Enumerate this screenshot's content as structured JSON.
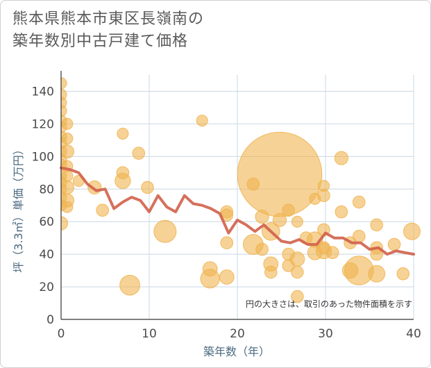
{
  "title_line1": "熊本県熊本市東区長嶺南の",
  "title_line2": "築年数別中古戸建て価格",
  "chart_data": {
    "type": "scatter",
    "title": "熊本県熊本市東区長嶺南の築年数別中古戸建て価格",
    "xlabel": "築年数（年）",
    "ylabel": "坪（3.3㎡）単価（万円）",
    "xlim": [
      0,
      40
    ],
    "ylim": [
      0,
      150
    ],
    "xticks": [
      0,
      10,
      20,
      30,
      40
    ],
    "yticks": [
      0,
      20,
      40,
      60,
      80,
      100,
      120,
      140
    ],
    "grid": true,
    "annotation": "円の大きさは、取引のあった物件面積を示す",
    "bubble_color": "#f0b450",
    "line_color": "#d0604a",
    "points": [
      {
        "x": 0,
        "y": 145,
        "s": 1
      },
      {
        "x": 0,
        "y": 138,
        "s": 1
      },
      {
        "x": 0,
        "y": 133,
        "s": 1
      },
      {
        "x": 0,
        "y": 128,
        "s": 1
      },
      {
        "x": 0,
        "y": 122,
        "s": 1
      },
      {
        "x": 0,
        "y": 118,
        "s": 1
      },
      {
        "x": 0,
        "y": 112,
        "s": 1
      },
      {
        "x": 0,
        "y": 108,
        "s": 1
      },
      {
        "x": 0,
        "y": 103,
        "s": 1
      },
      {
        "x": 0,
        "y": 98,
        "s": 1
      },
      {
        "x": 0,
        "y": 95,
        "s": 1
      },
      {
        "x": 0,
        "y": 88,
        "s": 1
      },
      {
        "x": 0,
        "y": 84,
        "s": 1
      },
      {
        "x": 0,
        "y": 80,
        "s": 1
      },
      {
        "x": 0,
        "y": 75,
        "s": 1
      },
      {
        "x": 0,
        "y": 70,
        "s": 1
      },
      {
        "x": 0,
        "y": 59,
        "s": 1.2
      },
      {
        "x": 0.7,
        "y": 120,
        "s": 1
      },
      {
        "x": 0.7,
        "y": 111,
        "s": 1
      },
      {
        "x": 0.7,
        "y": 103,
        "s": 1.2
      },
      {
        "x": 0.7,
        "y": 94,
        "s": 1
      },
      {
        "x": 0.7,
        "y": 88,
        "s": 1
      },
      {
        "x": 0.7,
        "y": 81,
        "s": 1.2
      },
      {
        "x": 0.7,
        "y": 73,
        "s": 1.2
      },
      {
        "x": 0.7,
        "y": 69,
        "s": 1
      },
      {
        "x": 2,
        "y": 85,
        "s": 1
      },
      {
        "x": 3.8,
        "y": 81,
        "s": 1.2
      },
      {
        "x": 4.7,
        "y": 67,
        "s": 1.1
      },
      {
        "x": 7,
        "y": 114,
        "s": 1
      },
      {
        "x": 7,
        "y": 90,
        "s": 1.1
      },
      {
        "x": 7,
        "y": 85,
        "s": 1.4
      },
      {
        "x": 7.8,
        "y": 21,
        "s": 1.8
      },
      {
        "x": 8.8,
        "y": 102,
        "s": 1.1
      },
      {
        "x": 9.8,
        "y": 81,
        "s": 1.1
      },
      {
        "x": 11.8,
        "y": 54,
        "s": 2
      },
      {
        "x": 16,
        "y": 122,
        "s": 1
      },
      {
        "x": 16.9,
        "y": 31,
        "s": 1.3
      },
      {
        "x": 16.9,
        "y": 25,
        "s": 1.7
      },
      {
        "x": 18.8,
        "y": 66,
        "s": 1.1
      },
      {
        "x": 18.8,
        "y": 64,
        "s": 1.1
      },
      {
        "x": 18.8,
        "y": 47,
        "s": 1.1
      },
      {
        "x": 18.8,
        "y": 26,
        "s": 1.3
      },
      {
        "x": 21.8,
        "y": 83,
        "s": 1.1
      },
      {
        "x": 21.8,
        "y": 46,
        "s": 1.8
      },
      {
        "x": 22.8,
        "y": 63,
        "s": 1.2
      },
      {
        "x": 22.8,
        "y": 43,
        "s": 1.1
      },
      {
        "x": 23.8,
        "y": 54,
        "s": 1.6
      },
      {
        "x": 23.8,
        "y": 34,
        "s": 1.3
      },
      {
        "x": 23.8,
        "y": 29,
        "s": 1.1
      },
      {
        "x": 24.8,
        "y": 89,
        "s": 7.6
      },
      {
        "x": 24.8,
        "y": 61,
        "s": 1.2
      },
      {
        "x": 25.8,
        "y": 67,
        "s": 1.1
      },
      {
        "x": 25.8,
        "y": 40,
        "s": 1.1
      },
      {
        "x": 25.8,
        "y": 33,
        "s": 1.1
      },
      {
        "x": 26.8,
        "y": 60,
        "s": 1
      },
      {
        "x": 26.8,
        "y": 37,
        "s": 1.3
      },
      {
        "x": 26.8,
        "y": 29,
        "s": 1.1
      },
      {
        "x": 26.8,
        "y": 14,
        "s": 1.1
      },
      {
        "x": 27.8,
        "y": 50,
        "s": 1.1
      },
      {
        "x": 28.8,
        "y": 74,
        "s": 1
      },
      {
        "x": 28.8,
        "y": 49,
        "s": 1.4
      },
      {
        "x": 28.8,
        "y": 41,
        "s": 1.3
      },
      {
        "x": 29.8,
        "y": 82,
        "s": 1
      },
      {
        "x": 29.8,
        "y": 76,
        "s": 1.1
      },
      {
        "x": 29.8,
        "y": 55,
        "s": 1.1
      },
      {
        "x": 29.8,
        "y": 44,
        "s": 1.1
      },
      {
        "x": 29.8,
        "y": 42,
        "s": 1.4
      },
      {
        "x": 30.8,
        "y": 41,
        "s": 1.1
      },
      {
        "x": 31.8,
        "y": 99,
        "s": 1.2
      },
      {
        "x": 31.8,
        "y": 66,
        "s": 1.1
      },
      {
        "x": 32.8,
        "y": 47,
        "s": 1.1
      },
      {
        "x": 32.8,
        "y": 30,
        "s": 1.4
      },
      {
        "x": 33.8,
        "y": 72,
        "s": 1.1
      },
      {
        "x": 33.8,
        "y": 51,
        "s": 1.1
      },
      {
        "x": 33.8,
        "y": 30,
        "s": 2.6
      },
      {
        "x": 35.8,
        "y": 58,
        "s": 1.1
      },
      {
        "x": 35.8,
        "y": 44,
        "s": 1.1
      },
      {
        "x": 35.8,
        "y": 40,
        "s": 1.1
      },
      {
        "x": 35.8,
        "y": 28,
        "s": 1.5
      },
      {
        "x": 37.8,
        "y": 46,
        "s": 1.1
      },
      {
        "x": 38.8,
        "y": 28,
        "s": 1.1
      },
      {
        "x": 39.8,
        "y": 54,
        "s": 1.5
      }
    ],
    "trend": [
      [
        0,
        93
      ],
      [
        1,
        92
      ],
      [
        2,
        90
      ],
      [
        3,
        83
      ],
      [
        4,
        79
      ],
      [
        5,
        80
      ],
      [
        6,
        68
      ],
      [
        7,
        72
      ],
      [
        8,
        75
      ],
      [
        9,
        73
      ],
      [
        10,
        66
      ],
      [
        11,
        76
      ],
      [
        12,
        69
      ],
      [
        13,
        66
      ],
      [
        14,
        76
      ],
      [
        15,
        71
      ],
      [
        16,
        70
      ],
      [
        17,
        68
      ],
      [
        18,
        65
      ],
      [
        19,
        53
      ],
      [
        20,
        61
      ],
      [
        21,
        58
      ],
      [
        22,
        54
      ],
      [
        23,
        58
      ],
      [
        24,
        53
      ],
      [
        25,
        48
      ],
      [
        26,
        47
      ],
      [
        27,
        49
      ],
      [
        28,
        46
      ],
      [
        29,
        46
      ],
      [
        30,
        53
      ],
      [
        31,
        50
      ],
      [
        32,
        50
      ],
      [
        33,
        47
      ],
      [
        34,
        47
      ],
      [
        35,
        43
      ],
      [
        36,
        44
      ],
      [
        37,
        40
      ],
      [
        38,
        42
      ],
      [
        39,
        41
      ],
      [
        40,
        40
      ]
    ]
  }
}
